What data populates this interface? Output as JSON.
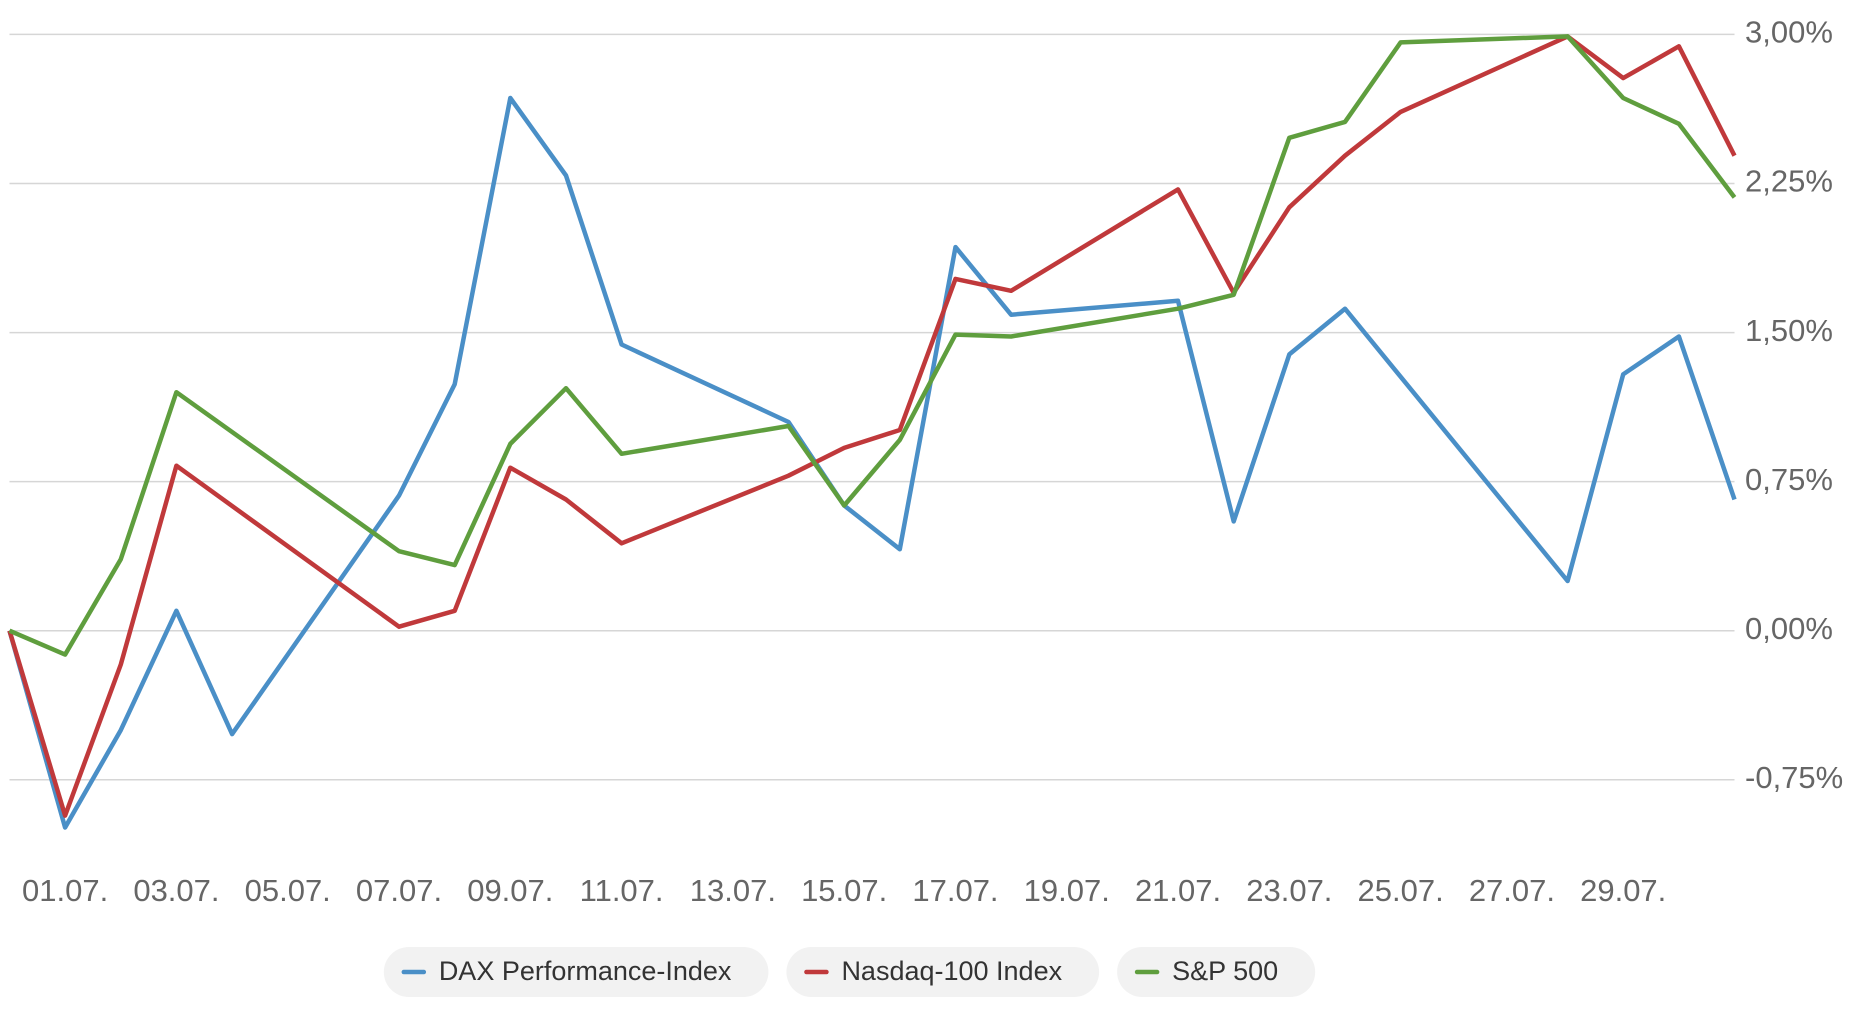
{
  "chart_data": {
    "type": "line",
    "xlim": [
      0,
      31
    ],
    "xticks": [
      {
        "value": 1,
        "label": "01.07."
      },
      {
        "value": 3,
        "label": "03.07."
      },
      {
        "value": 5,
        "label": "05.07."
      },
      {
        "value": 7,
        "label": "07.07."
      },
      {
        "value": 9,
        "label": "09.07."
      },
      {
        "value": 11,
        "label": "11.07."
      },
      {
        "value": 13,
        "label": "13.07."
      },
      {
        "value": 15,
        "label": "15.07."
      },
      {
        "value": 17,
        "label": "17.07."
      },
      {
        "value": 19,
        "label": "19.07."
      },
      {
        "value": 21,
        "label": "21.07."
      },
      {
        "value": 23,
        "label": "23.07."
      },
      {
        "value": 25,
        "label": "25.07."
      },
      {
        "value": 27,
        "label": "27.07."
      },
      {
        "value": 29,
        "label": "29.07."
      }
    ],
    "ylim": [
      -1.0,
      3.0
    ],
    "yticks": [
      {
        "value": -0.75,
        "label": "-0,75%"
      },
      {
        "value": 0,
        "label": "0,00%"
      },
      {
        "value": 0.75,
        "label": "0,75%"
      },
      {
        "value": 1.5,
        "label": "1,50%"
      },
      {
        "value": 2.25,
        "label": "2,25%"
      },
      {
        "value": 3.0,
        "label": "3,00%"
      }
    ],
    "grid": true,
    "series": [
      {
        "name": "DAX Performance-Index",
        "color": "#4a8fc7",
        "x": [
          0,
          1,
          2,
          3,
          4,
          7,
          8,
          9,
          10,
          11,
          14,
          15,
          16,
          17,
          18,
          21,
          22,
          23,
          24,
          28,
          29,
          30,
          31
        ],
        "values": [
          0,
          -0.99,
          -0.5,
          0.1,
          -0.52,
          0.68,
          1.24,
          2.68,
          2.29,
          1.44,
          1.05,
          0.63,
          0.41,
          1.93,
          1.59,
          1.66,
          0.55,
          1.39,
          1.62,
          0.25,
          1.29,
          1.48,
          0.66
        ]
      },
      {
        "name": "Nasdaq-100 Index",
        "color": "#c0393b",
        "x": [
          0,
          1,
          2,
          3,
          7,
          8,
          9,
          10,
          11,
          14,
          15,
          16,
          17,
          18,
          21,
          22,
          23,
          24,
          25,
          28,
          29,
          30,
          31
        ],
        "values": [
          0,
          -0.93,
          -0.17,
          0.83,
          0.02,
          0.1,
          0.82,
          0.66,
          0.44,
          0.78,
          0.92,
          1.01,
          1.77,
          1.71,
          2.22,
          1.7,
          2.13,
          2.39,
          2.61,
          2.99,
          2.78,
          2.94,
          2.39
        ]
      },
      {
        "name": "S&P 500",
        "color": "#5f9e3e",
        "x": [
          0,
          1,
          2,
          3,
          7,
          8,
          9,
          10,
          11,
          14,
          15,
          16,
          17,
          18,
          21,
          22,
          23,
          24,
          25,
          28,
          29,
          30,
          31
        ],
        "values": [
          0,
          -0.12,
          0.36,
          1.2,
          0.4,
          0.33,
          0.94,
          1.22,
          0.89,
          1.03,
          0.63,
          0.96,
          1.49,
          1.48,
          1.62,
          1.69,
          2.48,
          2.56,
          2.96,
          2.99,
          2.68,
          2.55,
          2.18
        ]
      }
    ]
  }
}
